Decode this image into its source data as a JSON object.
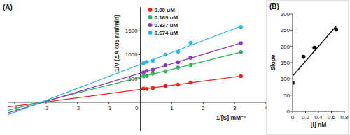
{
  "chart_data": [
    {
      "type": "scatter",
      "title": "(A)",
      "x_label": "1/[S] mM⁻¹",
      "y_label": "1/V (ΔA 405 nm/min)",
      "x": [
        0.1,
        0.2,
        0.4,
        0.8,
        1.2,
        1.6,
        3.2
      ],
      "series": [
        {
          "name": "0.00 uM",
          "color": "#e8281e",
          "marker": "circle",
          "line_style": "solid",
          "values": [
            285,
            280,
            300,
            345,
            370,
            415,
            548
          ]
        },
        {
          "name": "0.169 uM",
          "color": "#2fb35a",
          "marker": "circle",
          "line_style": "solid",
          "values": [
            545,
            550,
            600,
            650,
            730,
            780,
            1055
          ]
        },
        {
          "name": "0.337 uM",
          "color": "#8b3cb8",
          "marker": "circle",
          "line_style": "solid",
          "values": [
            625,
            660,
            680,
            775,
            840,
            935,
            1240
          ]
        },
        {
          "name": "0.674 uM",
          "color": "#2db4e8",
          "marker": "circle",
          "line_style": "solid",
          "values": [
            820,
            850,
            870,
            1000,
            1060,
            1250,
            1580
          ]
        }
      ],
      "xlim": [
        -4.2,
        4
      ],
      "xticks": [
        -4,
        -3,
        -2,
        -1,
        0,
        1,
        2,
        3,
        4
      ],
      "ylim": [
        -600,
        2000
      ],
      "yticks": [
        500,
        1000,
        1500
      ],
      "grid": false,
      "legend": "top"
    },
    {
      "type": "scatter",
      "title": "(B)",
      "x_label": "[I] nM",
      "y_label": "Slope",
      "x": [
        0,
        0.169,
        0.337,
        0.674
      ],
      "values": [
        88,
        168,
        196,
        252
      ],
      "color": "#000000",
      "marker": "circle",
      "line_style": "solid",
      "xlim": [
        0,
        0.8
      ],
      "xticks": [
        0,
        0.2,
        0.4,
        0.6,
        0.8
      ],
      "ylim": [
        0,
        300
      ],
      "yticks": [
        0,
        50,
        100,
        150,
        200,
        250,
        300
      ],
      "grid": false
    }
  ]
}
